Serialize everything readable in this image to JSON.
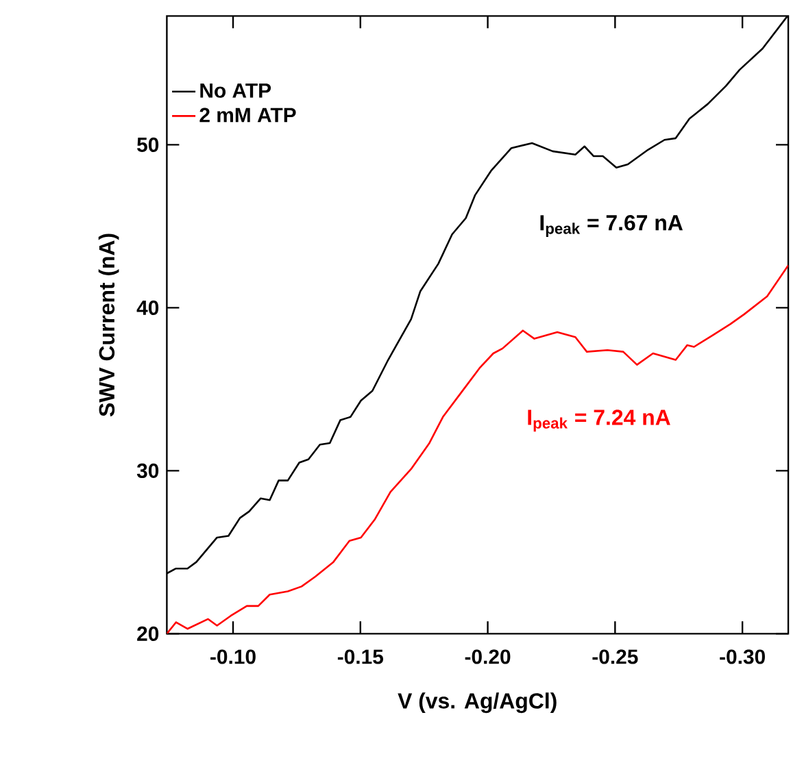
{
  "chart_data": {
    "type": "line",
    "xlabel": "V (vs. Ag/AgCl)",
    "ylabel": "SWV Current (nA)",
    "xlim": [
      -0.074,
      -0.318
    ],
    "ylim": [
      20,
      57.9
    ],
    "xticks": [
      {
        "value": -0.1,
        "label": "-0.10"
      },
      {
        "value": -0.15,
        "label": "-0.15"
      },
      {
        "value": -0.2,
        "label": "-0.20"
      },
      {
        "value": -0.25,
        "label": "-0.25"
      },
      {
        "value": -0.3,
        "label": "-0.30"
      }
    ],
    "yticks": [
      20,
      30,
      40,
      50
    ],
    "legend": "top left",
    "grid": false,
    "marker": "none",
    "line_style": "solid",
    "annotations": [
      "I$_{peak}$ = 7.67 nA",
      "I$_{peak}$ = 7.24 nA"
    ],
    "series": [
      {
        "name": "No ATP",
        "color": "#000000",
        "x": [
          -0.074,
          -0.0776,
          -0.0821,
          -0.0856,
          -0.0937,
          -0.0982,
          -0.1027,
          -0.1063,
          -0.1108,
          -0.1144,
          -0.1179,
          -0.1215,
          -0.126,
          -0.1296,
          -0.1341,
          -0.138,
          -0.1421,
          -0.1461,
          -0.1502,
          -0.1547,
          -0.1609,
          -0.1699,
          -0.1735,
          -0.1806,
          -0.186,
          -0.1914,
          -0.195,
          -0.2013,
          -0.2093,
          -0.2174,
          -0.2255,
          -0.2344,
          -0.238,
          -0.2416,
          -0.2452,
          -0.2505,
          -0.255,
          -0.263,
          -0.2694,
          -0.2738,
          -0.2792,
          -0.2864,
          -0.2935,
          -0.2989,
          -0.3079,
          -0.3177
        ],
        "values": [
          23.7,
          24.0,
          24.0,
          24.4,
          25.9,
          26.0,
          27.1,
          27.5,
          28.3,
          28.2,
          29.4,
          29.4,
          30.5,
          30.7,
          31.6,
          31.7,
          33.1,
          33.3,
          34.3,
          34.9,
          36.8,
          39.3,
          41.0,
          42.7,
          44.5,
          45.5,
          46.9,
          48.4,
          49.8,
          50.1,
          49.6,
          49.4,
          49.9,
          49.3,
          49.3,
          48.6,
          48.8,
          49.7,
          50.3,
          50.4,
          51.6,
          52.5,
          53.6,
          54.6,
          55.9,
          57.9
        ]
      },
      {
        "name": "2 mM ATP",
        "color": "#ff0000",
        "x": [
          -0.074,
          -0.0776,
          -0.0821,
          -0.0902,
          -0.0937,
          -0.0991,
          -0.1054,
          -0.1099,
          -0.1144,
          -0.1215,
          -0.1269,
          -0.1323,
          -0.1394,
          -0.1457,
          -0.1502,
          -0.1556,
          -0.1618,
          -0.1699,
          -0.1771,
          -0.1824,
          -0.1896,
          -0.1968,
          -0.2022,
          -0.2058,
          -0.2138,
          -0.2183,
          -0.2273,
          -0.2344,
          -0.2389,
          -0.247,
          -0.2532,
          -0.2586,
          -0.2649,
          -0.2738,
          -0.2783,
          -0.281,
          -0.2882,
          -0.2953,
          -0.3007,
          -0.3097,
          -0.318
        ],
        "values": [
          20.0,
          20.7,
          20.3,
          20.9,
          20.5,
          21.1,
          21.7,
          21.7,
          22.4,
          22.6,
          22.9,
          23.5,
          24.4,
          25.7,
          25.9,
          27.0,
          28.7,
          30.1,
          31.7,
          33.3,
          34.8,
          36.3,
          37.2,
          37.5,
          38.6,
          38.1,
          38.5,
          38.2,
          37.3,
          37.4,
          37.3,
          36.5,
          37.2,
          36.8,
          37.7,
          37.6,
          38.3,
          39.0,
          39.6,
          40.7,
          42.6
        ]
      }
    ]
  }
}
